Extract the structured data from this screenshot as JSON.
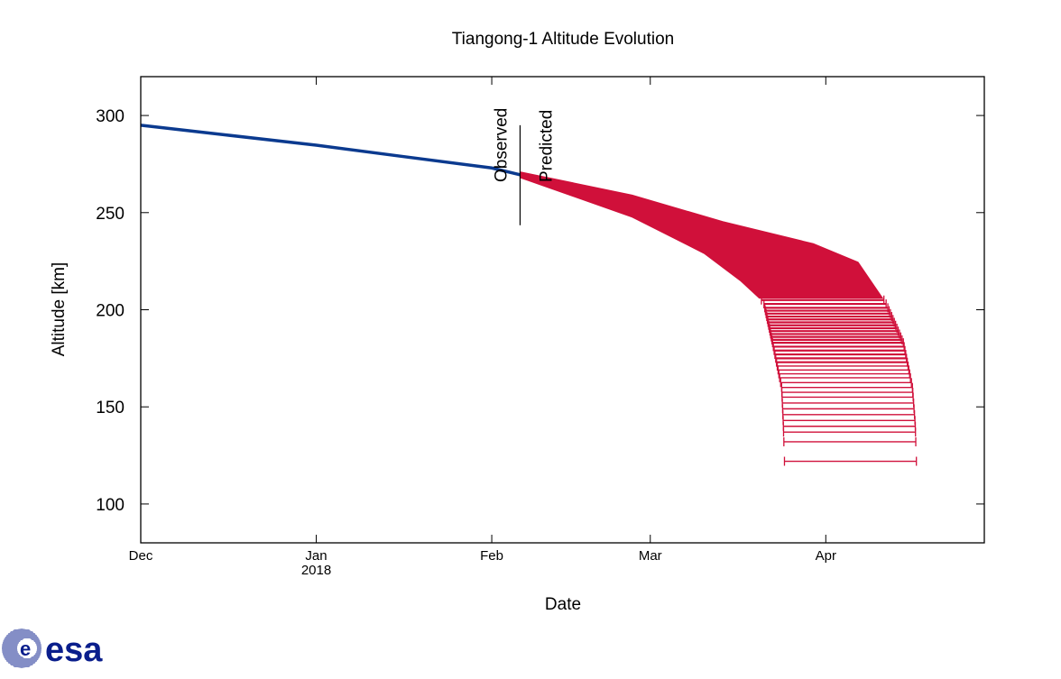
{
  "chart_data": {
    "type": "line",
    "title": "Tiangong-1 Altitude Evolution",
    "xlabel": "Date",
    "ylabel": "Altitude [km]",
    "x_units": "days since 2017-12-01",
    "xlim": [
      0,
      149
    ],
    "ylim": [
      80,
      320
    ],
    "grid": false,
    "y_ticks": [
      100,
      150,
      200,
      250,
      300
    ],
    "x_ticks": [
      {
        "day": 0,
        "label": "Dec",
        "sublabel": ""
      },
      {
        "day": 31,
        "label": "Jan",
        "sublabel": "2018"
      },
      {
        "day": 62,
        "label": "Feb",
        "sublabel": ""
      },
      {
        "day": 90,
        "label": "Mar",
        "sublabel": ""
      },
      {
        "day": 121,
        "label": "Apr",
        "sublabel": ""
      }
    ],
    "divider": {
      "day": 67,
      "y_range": [
        243.5,
        295
      ],
      "left_label": "Observed",
      "right_label": "Predicted"
    },
    "observed": {
      "name": "Observed",
      "color": "#0b3a8f",
      "points": [
        [
          0,
          295
        ],
        [
          15,
          290
        ],
        [
          31,
          284.7
        ],
        [
          46,
          279
        ],
        [
          62,
          273
        ],
        [
          67,
          269.5
        ]
      ]
    },
    "predicted": {
      "name": "Predicted",
      "color": "#d0103a",
      "upper_boundary": [
        [
          67,
          271
        ],
        [
          86.8,
          259
        ],
        [
          102.8,
          245.4
        ],
        [
          118.8,
          234
        ],
        [
          126.7,
          224.5
        ],
        [
          131.5,
          204
        ],
        [
          134.7,
          183
        ],
        [
          136.3,
          160
        ],
        [
          136.8,
          141
        ],
        [
          137,
          122
        ]
      ],
      "lower_boundary": [
        [
          67,
          268
        ],
        [
          86.8,
          247.7
        ],
        [
          99.5,
          229
        ],
        [
          105.9,
          215
        ],
        [
          110,
          204
        ],
        [
          111.6,
          183
        ],
        [
          113.2,
          160
        ],
        [
          113.5,
          141
        ],
        [
          113.7,
          122
        ]
      ],
      "solid_above_km": 206,
      "levels_km": [
        205,
        203,
        201,
        199.5,
        198,
        196.5,
        195,
        193.5,
        192,
        190.5,
        189,
        187.5,
        186,
        184.5,
        183,
        181,
        179,
        177,
        175,
        173,
        171,
        169,
        167,
        165,
        162.5,
        160,
        157.5,
        155,
        152,
        149,
        146,
        143,
        140,
        137,
        132,
        122
      ]
    }
  },
  "logo": {
    "text": "esa",
    "color": "#0a1e8c"
  }
}
